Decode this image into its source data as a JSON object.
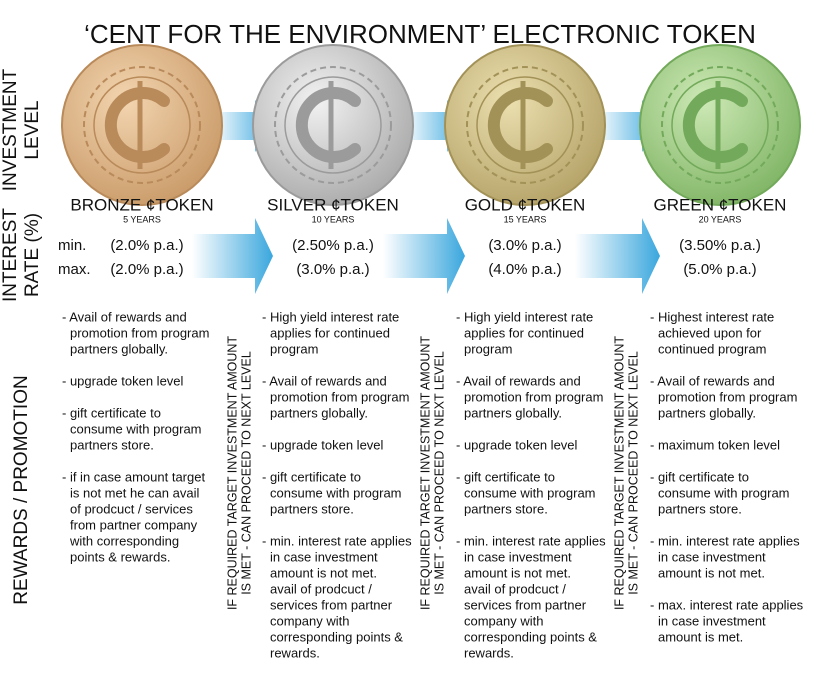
{
  "title": "‘CENT FOR THE ENVIRONMENT’ ELECTRONIC TOKEN",
  "row_labels": {
    "investment": [
      "INVESTMENT",
      "LEVEL"
    ],
    "interest": [
      "INTEREST",
      "RATE (%)"
    ],
    "rewards": [
      "REWARDS / PROMOTION"
    ]
  },
  "rate_labels": {
    "min": "min.",
    "max": "max."
  },
  "connectors": [
    [
      "IF REQUIRED TARGET INVESTMENT AMOUNT",
      "IS MET - CAN PROCEED TO NEXT LEVEL"
    ],
    [
      "IF REQUIRED TARGET INVESTMENT AMOUNT",
      "IS MET - CAN PROCEED TO NEXT LEVEL"
    ],
    [
      "IF REQUIRED TARGET INVESTMENT AMOUNT",
      "IS MET - CAN PROCEED TO NEXT LEVEL"
    ]
  ],
  "tokens": [
    {
      "name": "BRONZE ¢TOKEN",
      "years": "5 YEARS",
      "min": "(2.0% p.a.)",
      "max": "(2.0% p.a.)",
      "rewards": [
        [
          "- Avail of rewards and",
          "promotion from program",
          "partners globally."
        ],
        [
          "- upgrade token level"
        ],
        [
          "- gift certificate to",
          "consume with program",
          "partners store."
        ],
        [
          "- if in case amount target",
          "is not met he can avail",
          "of prodcuct / services",
          "from partner company",
          "with corresponding",
          "points & rewards."
        ]
      ]
    },
    {
      "name": "SILVER ¢TOKEN",
      "years": "10 YEARS",
      "min": "(2.50% p.a.)",
      "max": "(3.0% p.a.)",
      "rewards": [
        [
          "- High yield interest rate",
          "applies for continued",
          "program"
        ],
        [
          "- Avail of rewards and",
          "promotion from program",
          "partners globally."
        ],
        [
          "- upgrade token level"
        ],
        [
          "- gift certificate to",
          "consume with program",
          "partners store."
        ],
        [
          "- min. interest rate applies",
          "in case investment",
          "amount is not met.",
          "avail of prodcuct /",
          "services from partner",
          "company with",
          "corresponding points &",
          "rewards."
        ]
      ]
    },
    {
      "name": "GOLD ¢TOKEN",
      "years": "15 YEARS",
      "min": "(3.0% p.a.)",
      "max": "(4.0% p.a.)",
      "rewards": [
        [
          "- High yield interest rate",
          "applies for continued",
          "program"
        ],
        [
          "- Avail of rewards and",
          "promotion from program",
          "partners globally."
        ],
        [
          "- upgrade token level"
        ],
        [
          "- gift certificate to",
          "consume with program",
          "partners store."
        ],
        [
          "- min. interest rate applies",
          "in case investment",
          "amount is not met.",
          "avail of prodcuct /",
          "services from partner",
          "company with",
          "corresponding points &",
          "rewards."
        ]
      ]
    },
    {
      "name": "GREEN ¢TOKEN",
      "years": "20 YEARS",
      "min": "(3.50% p.a.)",
      "max": "(5.0% p.a.)",
      "rewards": [
        [
          "- Highest interest rate",
          "achieved upon for",
          "continued program"
        ],
        [
          "- Avail of rewards and",
          "promotion from program",
          "partners globally."
        ],
        [
          "- maximum token level"
        ],
        [
          "- gift certificate to",
          "consume with program",
          "partners store."
        ],
        [
          "- min. interest rate applies",
          "in case investment",
          "amount is not met."
        ],
        [
          "- max. interest rate applies",
          "in case investment",
          "amount is met."
        ]
      ]
    }
  ]
}
